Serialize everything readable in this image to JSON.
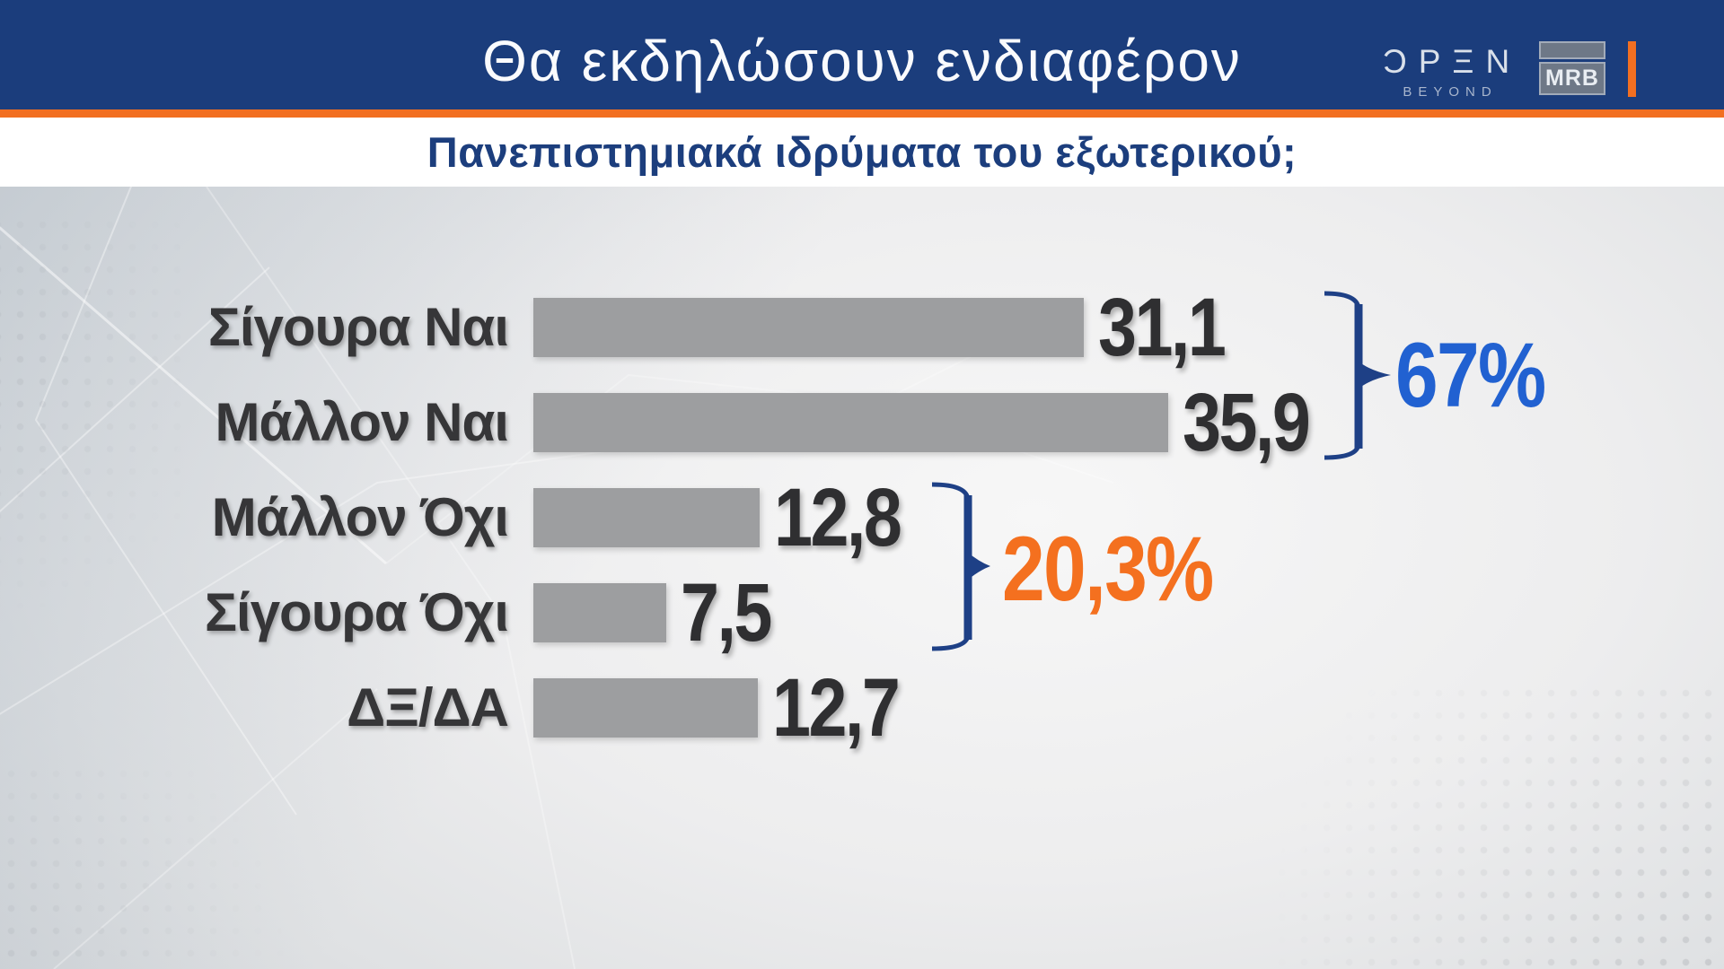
{
  "header": {
    "title": "Θα εκδηλώσουν ενδιαφέρον",
    "open_logo": {
      "text": "ƆPΞN",
      "tagline": "BEYOND"
    },
    "mrb_logo": {
      "text": "MRB"
    }
  },
  "subtitle": "Πανεπιστημιακά ιδρύματα του εξωτερικού;",
  "chart_data": {
    "type": "bar",
    "orientation": "horizontal",
    "title": "Θα εκδηλώσουν ενδιαφέρον",
    "subtitle": "Πανεπιστημιακά ιδρύματα του εξωτερικού;",
    "categories": [
      "Σίγουρα Ναι",
      "Μάλλον Ναι",
      "Μάλλον Όχι",
      "Σίγουρα Όχι",
      "ΔΞ/ΔΑ"
    ],
    "values": [
      31.1,
      35.9,
      12.8,
      7.5,
      12.7
    ],
    "value_labels": [
      "31,1",
      "35,9",
      "12,8",
      "7,5",
      "12,7"
    ],
    "unit": "percent",
    "xlim": [
      0,
      40
    ],
    "grid": false,
    "legend": false,
    "groups": [
      {
        "label": "67%",
        "sum_of": [
          "Σίγουρα Ναι",
          "Μάλλον Ναι"
        ],
        "color": "#2161d1"
      },
      {
        "label": "20,3%",
        "sum_of": [
          "Μάλλον Όχι",
          "Σίγουρα Όχι"
        ],
        "color": "#f4701f"
      }
    ]
  },
  "colors": {
    "header_bg": "#1b3d7c",
    "accent_orange": "#f26f21",
    "subtitle_text": "#1c3e7d",
    "bar": "#9d9ea0",
    "value_text": "#2f2f31",
    "bracket": "#1e4086"
  }
}
